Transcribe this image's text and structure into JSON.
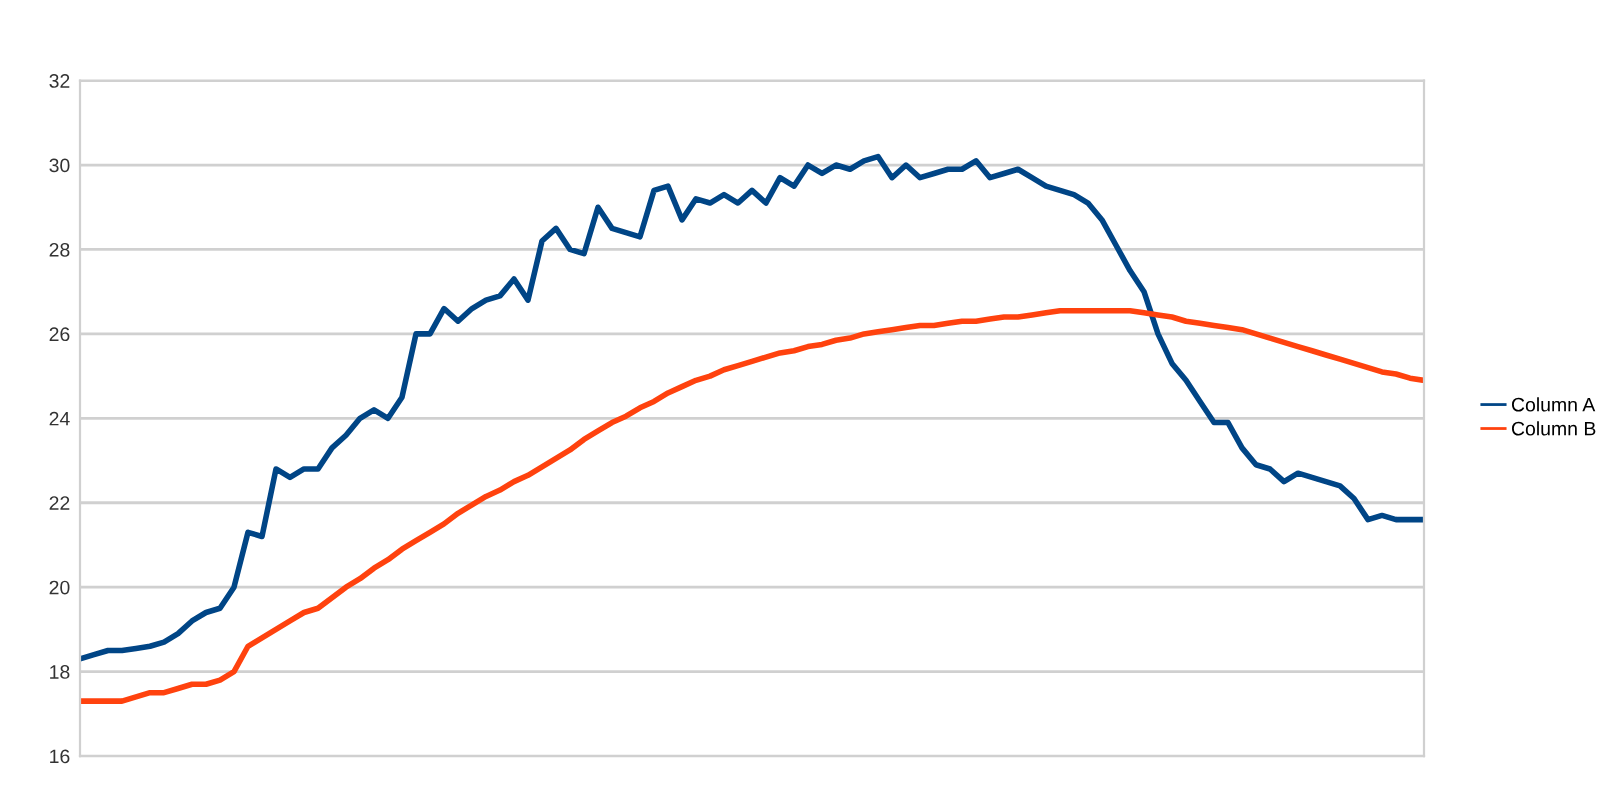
{
  "chart_data": {
    "type": "line",
    "categories": [
      null,
      null,
      null,
      null,
      null,
      null,
      null,
      null,
      null,
      null,
      null,
      null,
      null,
      null,
      null,
      null,
      null,
      null,
      null,
      null,
      null,
      null,
      null,
      null,
      null,
      null,
      null,
      null,
      null,
      null,
      null,
      null,
      null,
      null,
      null,
      null,
      null,
      null,
      null,
      null,
      null,
      null,
      null,
      null,
      null,
      null,
      null,
      null,
      null,
      null,
      null,
      null,
      null,
      null,
      null,
      null,
      null,
      null,
      null,
      null,
      null,
      null,
      null,
      null,
      null,
      null,
      null,
      null,
      null,
      null,
      null,
      null,
      null,
      null,
      null,
      null,
      null,
      null,
      null,
      null,
      null,
      null,
      null,
      null,
      null,
      null,
      null,
      null,
      null,
      null,
      null,
      null,
      null,
      null,
      null,
      null,
      null
    ],
    "series": [
      {
        "name": "Column A",
        "color": "#004586",
        "values": [
          18.3,
          18.4,
          18.5,
          18.5,
          18.55,
          18.6,
          18.7,
          18.9,
          19.2,
          19.4,
          19.5,
          20.0,
          21.3,
          21.2,
          22.8,
          22.6,
          22.8,
          22.8,
          23.3,
          23.6,
          24.0,
          24.2,
          24.0,
          24.5,
          26.0,
          26.0,
          26.6,
          26.3,
          26.6,
          26.8,
          26.9,
          27.3,
          26.8,
          28.2,
          28.5,
          28.0,
          27.9,
          29.0,
          28.5,
          28.4,
          28.3,
          29.4,
          29.5,
          28.7,
          29.2,
          29.1,
          29.3,
          29.1,
          29.4,
          29.1,
          29.7,
          29.5,
          30.0,
          29.8,
          30.0,
          29.9,
          30.1,
          30.2,
          29.7,
          30.0,
          29.7,
          29.8,
          29.9,
          29.9,
          30.1,
          29.7,
          29.8,
          29.9,
          29.7,
          29.5,
          29.4,
          29.3,
          29.1,
          28.7,
          28.1,
          27.5,
          27.0,
          26.0,
          25.3,
          24.9,
          24.4,
          23.9,
          23.9,
          23.3,
          22.9,
          22.8,
          22.5,
          22.7,
          22.6,
          22.5,
          22.4,
          22.1,
          21.6,
          21.7,
          21.6,
          21.6,
          21.6
        ]
      },
      {
        "name": "Column B",
        "color": "#ff420e",
        "values": [
          17.3,
          17.3,
          17.3,
          17.3,
          17.4,
          17.5,
          17.5,
          17.6,
          17.7,
          17.7,
          17.8,
          18.0,
          18.6,
          18.8,
          19.0,
          19.2,
          19.4,
          19.5,
          19.75,
          20.0,
          20.2,
          20.45,
          20.65,
          20.9,
          21.1,
          21.3,
          21.5,
          21.75,
          21.95,
          22.15,
          22.3,
          22.5,
          22.65,
          22.85,
          23.05,
          23.25,
          23.5,
          23.7,
          23.9,
          24.05,
          24.25,
          24.4,
          24.6,
          24.75,
          24.9,
          25.0,
          25.15,
          25.25,
          25.35,
          25.45,
          25.55,
          25.6,
          25.7,
          25.75,
          25.85,
          25.9,
          26.0,
          26.05,
          26.1,
          26.15,
          26.2,
          26.2,
          26.25,
          26.3,
          26.3,
          26.35,
          26.4,
          26.4,
          26.45,
          26.5,
          26.55,
          26.55,
          26.55,
          26.55,
          26.55,
          26.55,
          26.5,
          26.45,
          26.4,
          26.3,
          26.25,
          26.2,
          26.15,
          26.1,
          26.0,
          25.9,
          25.8,
          25.7,
          25.6,
          25.5,
          25.4,
          25.3,
          25.2,
          25.1,
          25.05,
          24.95,
          24.9
        ]
      }
    ],
    "ylim": [
      16,
      32
    ],
    "yticks": [
      16,
      18,
      20,
      22,
      24,
      26,
      28,
      30,
      32
    ],
    "grid": "y",
    "legend": "right",
    "tick_labels": "y",
    "marker": "none",
    "line_style": "solid"
  }
}
